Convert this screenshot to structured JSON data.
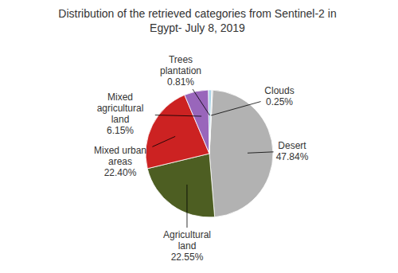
{
  "chart_data": {
    "type": "pie",
    "title": "Distribution of the retrieved categories from Sentinel-2 in\nEgypt- July 8, 2019",
    "categories": [
      "Desert",
      "Agricultural\nland",
      "Mixed urban\nareas",
      "Mixed\nagricultural\nland",
      "Trees\nplantation",
      "Clouds"
    ],
    "values": [
      47.84,
      22.55,
      22.4,
      6.15,
      0.81,
      0.25
    ],
    "value_labels": [
      "47.84%",
      "22.55%",
      "22.40%",
      "6.15%",
      "0.81%",
      "0.25%"
    ],
    "colors": [
      "#b2b2b2",
      "#4d5e22",
      "#cc2222",
      "#9966bb",
      "#aad4e8",
      "#c8c8c8"
    ],
    "data_labels": true
  }
}
